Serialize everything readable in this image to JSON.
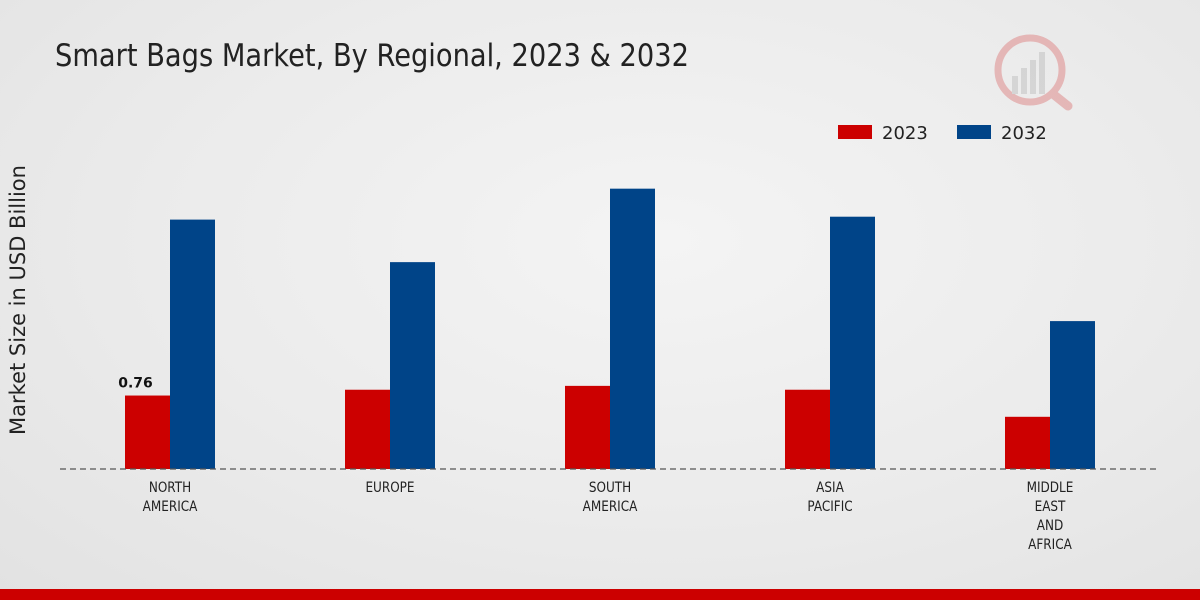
{
  "title": "Smart Bags Market, By Regional, 2023 & 2032",
  "ylabel": "Market Size in USD Billion",
  "colors": {
    "s2023": "#cc0000",
    "s2032": "#004488",
    "baseline": "#555555",
    "label": "#222222",
    "bottom_bar": "#cc0000"
  },
  "chart_data": {
    "type": "bar",
    "title": "Smart Bags Market, By Regional, 2023 & 2032",
    "xlabel": "",
    "ylabel": "Market Size in USD Billion",
    "ylim": [
      0,
      3.0
    ],
    "legend_position": "top-right",
    "grid": false,
    "categories": [
      [
        "NORTH",
        "AMERICA"
      ],
      [
        "EUROPE"
      ],
      [
        "SOUTH",
        "AMERICA"
      ],
      [
        "ASIA",
        "PACIFIC"
      ],
      [
        "MIDDLE",
        "EAST",
        "AND",
        "AFRICA"
      ]
    ],
    "series": [
      {
        "name": "2023",
        "values": [
          0.76,
          0.82,
          0.86,
          0.82,
          0.54
        ]
      },
      {
        "name": "2032",
        "values": [
          2.58,
          2.14,
          2.9,
          2.61,
          1.53
        ]
      }
    ],
    "data_labels": [
      {
        "series": 0,
        "index": 0,
        "text": "0.76"
      }
    ]
  }
}
